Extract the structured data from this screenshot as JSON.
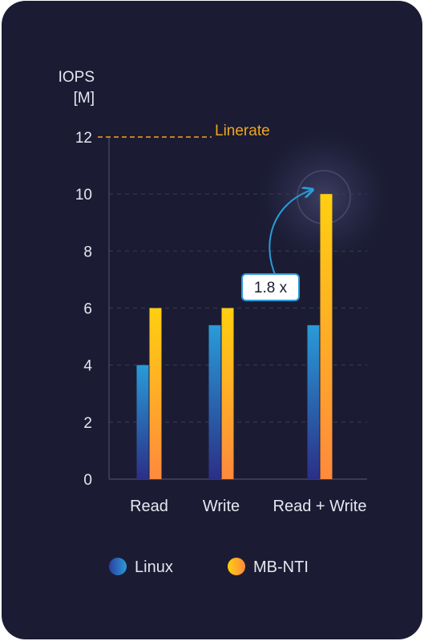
{
  "colors": {
    "background": "#1b1c33",
    "axis_text": "#e6e7f0",
    "gridline": "#3a3c58",
    "linerate": "#f1a51d",
    "linux_top": "#2a9bd8",
    "linux_bottom": "#2b2f86",
    "mbnti_top": "#ffcf10",
    "mbnti_bottom": "#ff8a3d",
    "callout_border": "#2a9bd8"
  },
  "chart_data": {
    "type": "bar",
    "ylabel": "IOPS\n[M]",
    "ylabel_lines": [
      "IOPS",
      "[M]"
    ],
    "categories": [
      "Read",
      "Write",
      "Read + Write"
    ],
    "series": [
      {
        "name": "Linux",
        "values": [
          4.0,
          5.4,
          5.4
        ]
      },
      {
        "name": "MB-NTI",
        "values": [
          6.0,
          6.0,
          10.0
        ]
      }
    ],
    "ylim": [
      0,
      12
    ],
    "yticks": [
      "0",
      "2",
      "4",
      "6",
      "8",
      "10",
      "12"
    ],
    "grid": true,
    "reference_line": {
      "label": "Linerate",
      "value": 12
    },
    "annotation": {
      "text": "1.8 x"
    },
    "legend_position": "bottom"
  }
}
